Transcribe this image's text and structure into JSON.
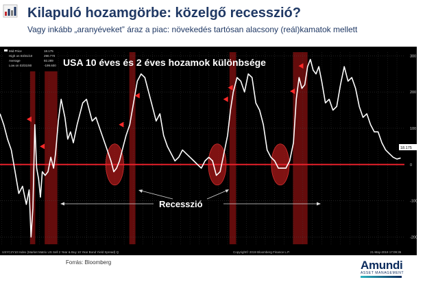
{
  "slide": {
    "title": "Kilapuló hozamgörbe: közelgő recesszió?",
    "subtitle": "Vagy inkább „aranyéveket” áraz a piac: növekedés tartósan alacsony (reál)kamatok mellett",
    "source": "Forrás: Bloomberg",
    "logo": {
      "name": "Amundi",
      "tagline": "ASSET MANAGEMENT"
    },
    "icon": "bar-chart-icon"
  },
  "chart_data": {
    "type": "line",
    "title": "USA 10 éves és 2 éves hozamok különbsége",
    "annotation": "Recesszió",
    "ylim": [
      -220,
      310
    ],
    "xlim": [
      1976.8,
      2019.8
    ],
    "yticks": [
      -200,
      -100,
      0,
      100,
      200,
      300
    ],
    "ytick_labels": [
      "-200",
      "-100",
      "0",
      "100",
      "200",
      "300"
    ],
    "xticks": [
      1977,
      1978,
      1979,
      1980,
      1981,
      1982,
      1983,
      1984,
      1985,
      1986,
      1987,
      1988,
      1989,
      1990,
      1991,
      1992,
      1993,
      1994,
      1995,
      1996,
      1997,
      1998,
      1999,
      2000,
      2001,
      2002,
      2003,
      2004,
      2005,
      2006,
      2007,
      2008,
      2009,
      2010,
      2011,
      2012,
      2013,
      2014,
      2015,
      2016,
      2017,
      2018,
      2019
    ],
    "xtick_labels": [
      "'77",
      "'78",
      "'79",
      "'80",
      "'81",
      "'82",
      "'83",
      "'84",
      "'85",
      "'86",
      "'87",
      "'88",
      "'89",
      "'90",
      "'91",
      "'92",
      "'93",
      "'94",
      "'95",
      "'96",
      "'97",
      "'98",
      "'99",
      "'00",
      "'01",
      "'02",
      "'03",
      "'04",
      "'05",
      "'06",
      "'07",
      "'08",
      "'09",
      "'10",
      "'11",
      "'12",
      "'13",
      "'14",
      "'15",
      "'16",
      "'17",
      "'18",
      "'19"
    ],
    "grid": true,
    "legend": {
      "position": "top-left",
      "entries": [
        {
          "label": "Mid Price",
          "value": "18.175"
        },
        {
          "label": "High on 03/31/10",
          "value": "290.770"
        },
        {
          "label": "Average",
          "value": "92.289"
        },
        {
          "label": "Low on 03/31/80",
          "value": "-199.600"
        }
      ]
    },
    "last_value_label": "18.175",
    "footer_left": "USYC2Y10 Index (Market Matrix US Sell 2 Year & Buy 10 Year Bond Yield Spread) Q",
    "footer_center": "Copyright© 2019 Bloomberg Finance L.P.",
    "footer_right": "21-May-2019 17:09:36",
    "recessions": [
      [
        1980.0,
        1980.55
      ],
      [
        1981.55,
        1982.9
      ],
      [
        1990.55,
        1991.2
      ],
      [
        2001.2,
        2001.9
      ],
      [
        2007.95,
        2009.5
      ]
    ],
    "inversion_circles": [
      1989.0,
      1999.9,
      2006.6
    ],
    "markers": [
      {
        "x": 1980.0,
        "y": 125
      },
      {
        "x": 1981.4,
        "y": 50
      },
      {
        "x": 1989.8,
        "y": 110
      },
      {
        "x": 1991.5,
        "y": 190
      },
      {
        "x": 2000.9,
        "y": 180
      },
      {
        "x": 2001.4,
        "y": 212
      },
      {
        "x": 2008.0,
        "y": 202
      },
      {
        "x": 2008.9,
        "y": 272
      }
    ],
    "series": [
      {
        "color": "#ffffff",
        "x": [
          1976.8,
          1977.2,
          1977.6,
          1978.0,
          1978.4,
          1978.8,
          1979.2,
          1979.6,
          1979.9,
          1980.1,
          1980.3,
          1980.5,
          1980.7,
          1980.9,
          1981.1,
          1981.3,
          1981.6,
          1981.9,
          1982.2,
          1982.5,
          1982.7,
          1983.0,
          1983.3,
          1983.7,
          1984.0,
          1984.3,
          1984.6,
          1985.0,
          1985.3,
          1985.6,
          1986.0,
          1986.3,
          1986.6,
          1987.0,
          1987.4,
          1987.8,
          1988.2,
          1988.6,
          1988.9,
          1989.2,
          1989.5,
          1989.8,
          1990.2,
          1990.6,
          1991.0,
          1991.4,
          1991.8,
          1992.2,
          1992.6,
          1993.0,
          1993.4,
          1993.8,
          1994.2,
          1994.6,
          1995.0,
          1995.4,
          1995.8,
          1996.2,
          1996.6,
          1997.0,
          1997.4,
          1997.8,
          1998.2,
          1998.6,
          1999.0,
          1999.4,
          1999.8,
          2000.2,
          2000.6,
          2001.0,
          2001.3,
          2001.6,
          2002.0,
          2002.4,
          2002.8,
          2003.2,
          2003.6,
          2004.0,
          2004.4,
          2004.8,
          2005.2,
          2005.6,
          2006.0,
          2006.4,
          2006.8,
          2007.2,
          2007.6,
          2008.0,
          2008.3,
          2008.6,
          2008.9,
          2009.2,
          2009.5,
          2009.8,
          2010.1,
          2010.4,
          2010.7,
          2011.0,
          2011.4,
          2011.8,
          2012.2,
          2012.6,
          2013.0,
          2013.4,
          2013.8,
          2014.2,
          2014.6,
          2015.0,
          2015.4,
          2015.8,
          2016.2,
          2016.6,
          2017.0,
          2017.4,
          2017.8,
          2018.2,
          2018.6,
          2019.0,
          2019.4
        ],
        "y": [
          140,
          110,
          70,
          40,
          -20,
          -80,
          -60,
          -110,
          -70,
          -200,
          -120,
          110,
          -10,
          -40,
          -90,
          -20,
          -30,
          -20,
          20,
          -10,
          30,
          120,
          180,
          130,
          70,
          90,
          60,
          110,
          140,
          170,
          180,
          150,
          120,
          130,
          100,
          70,
          40,
          10,
          -20,
          -10,
          10,
          40,
          80,
          110,
          170,
          230,
          250,
          240,
          200,
          160,
          120,
          140,
          80,
          50,
          30,
          10,
          20,
          40,
          30,
          20,
          10,
          0,
          -10,
          10,
          20,
          10,
          -30,
          -20,
          30,
          80,
          150,
          200,
          240,
          230,
          200,
          250,
          240,
          170,
          150,
          110,
          40,
          20,
          10,
          -10,
          -10,
          -10,
          10,
          60,
          180,
          240,
          210,
          220,
          270,
          290,
          260,
          250,
          270,
          230,
          170,
          180,
          150,
          160,
          220,
          270,
          230,
          240,
          210,
          160,
          130,
          140,
          110,
          90,
          90,
          60,
          40,
          30,
          20,
          15,
          18
        ]
      }
    ]
  }
}
